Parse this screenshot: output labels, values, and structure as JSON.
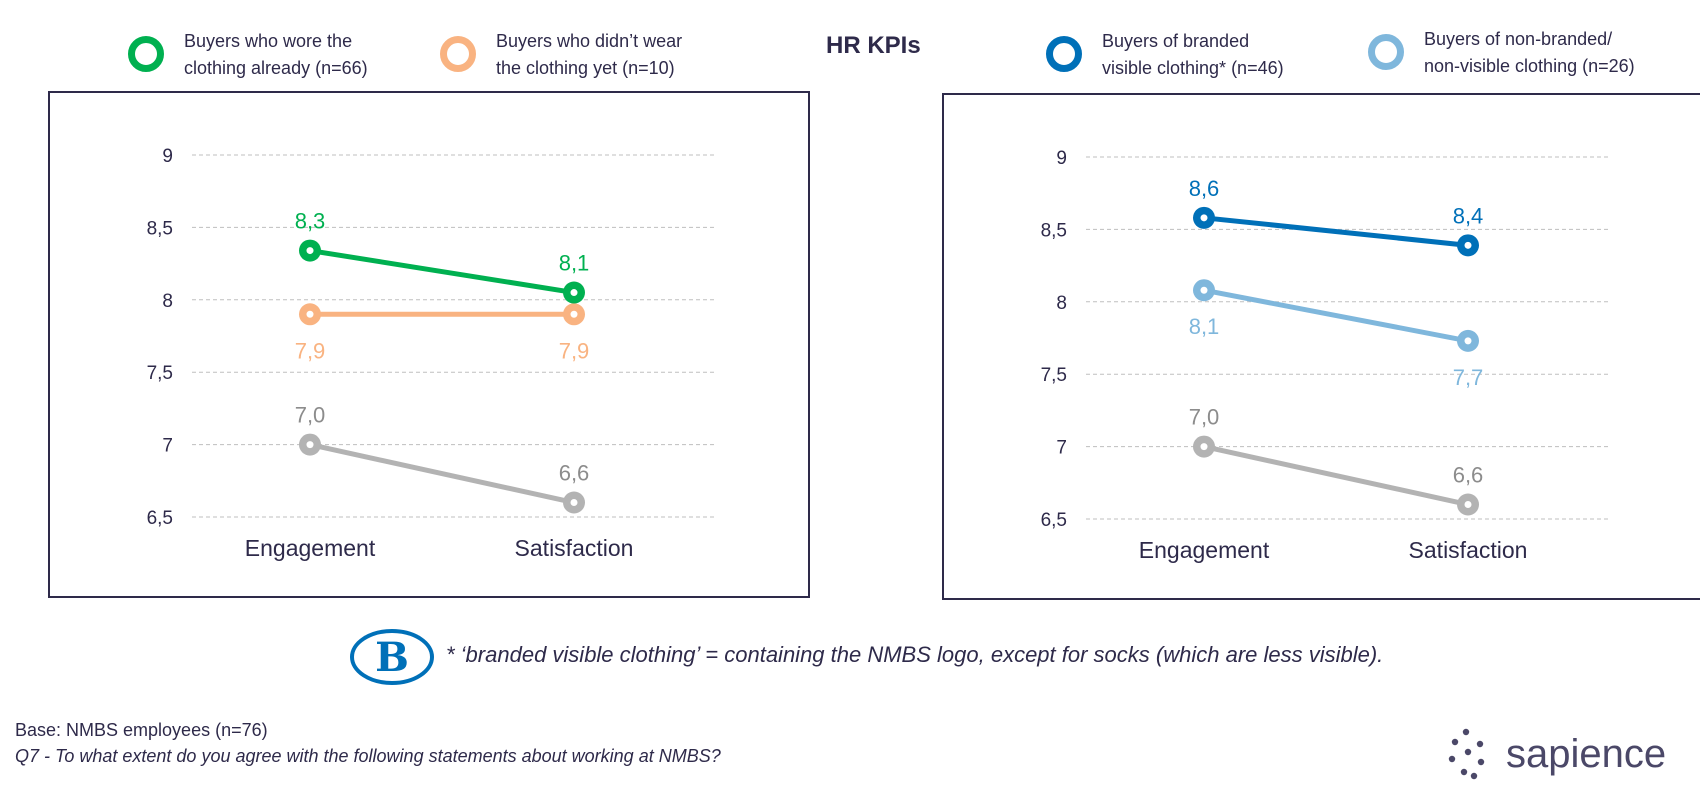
{
  "header": {
    "title": "HR KPIs"
  },
  "legend_left": [
    {
      "label": "Buyers who wore the\nclothing already (n=66)",
      "color": "#00b050"
    },
    {
      "label": "Buyers who didn’t wear\nthe clothing yet (n=10)",
      "color": "#f9b381"
    }
  ],
  "legend_right": [
    {
      "label": "Buyers of branded\nvisible clothing* (n=46)",
      "color": "#0070b8"
    },
    {
      "label": "Buyers of non-branded/\nnon-visible clothing (n=26)",
      "color": "#7fb7dc"
    }
  ],
  "chart_data": [
    {
      "type": "line",
      "categories": [
        "Engagement",
        "Satisfaction"
      ],
      "ylim": [
        6.5,
        9
      ],
      "yticks": [
        "6,5",
        "7",
        "7,5",
        "8",
        "8,5",
        "9"
      ],
      "grid": true,
      "series": [
        {
          "name": "Buyers who wore the clothing already (n=66)",
          "color": "#00b050",
          "values": [
            8.34,
            8.05
          ],
          "labels": [
            "8,3",
            "8,1"
          ],
          "label_pos": "above"
        },
        {
          "name": "Buyers who didn’t wear the clothing yet (n=10)",
          "color": "#f9b381",
          "values": [
            7.9,
            7.9
          ],
          "labels": [
            "7,9",
            "7,9"
          ],
          "label_pos": "below"
        },
        {
          "name": "",
          "color": "#b3b3b3",
          "values": [
            7.0,
            6.6
          ],
          "labels": [
            "7,0",
            "6,6"
          ],
          "label_pos": "above"
        }
      ]
    },
    {
      "type": "line",
      "categories": [
        "Engagement",
        "Satisfaction"
      ],
      "ylim": [
        6.5,
        9
      ],
      "yticks": [
        "6,5",
        "7",
        "7,5",
        "8",
        "8,5",
        "9"
      ],
      "grid": true,
      "series": [
        {
          "name": "Buyers of branded visible clothing* (n=46)",
          "color": "#0070b8",
          "values": [
            8.58,
            8.39
          ],
          "labels": [
            "8,6",
            "8,4"
          ],
          "label_pos": "above"
        },
        {
          "name": "Buyers of non-branded/non-visible clothing (n=26)",
          "color": "#7fb7dc",
          "values": [
            8.08,
            7.73
          ],
          "labels": [
            "8,1",
            "7,7"
          ],
          "label_pos": "below"
        },
        {
          "name": "",
          "color": "#b3b3b3",
          "values": [
            7.0,
            6.6
          ],
          "labels": [
            "7,0",
            "6,6"
          ],
          "label_pos": "above"
        }
      ]
    }
  ],
  "footnote": "* ‘branded visible clothing’ = containing the NMBS logo, except for socks (which are less visible).",
  "logo": {
    "letter": "B",
    "color": "#0070b8"
  },
  "base_note": "Base: NMBS employees (n=76)",
  "question_note": "Q7 - To what extent do you agree with the following statements about working at NMBS?",
  "brand": {
    "name": "sapience",
    "color": "#4b4868"
  }
}
